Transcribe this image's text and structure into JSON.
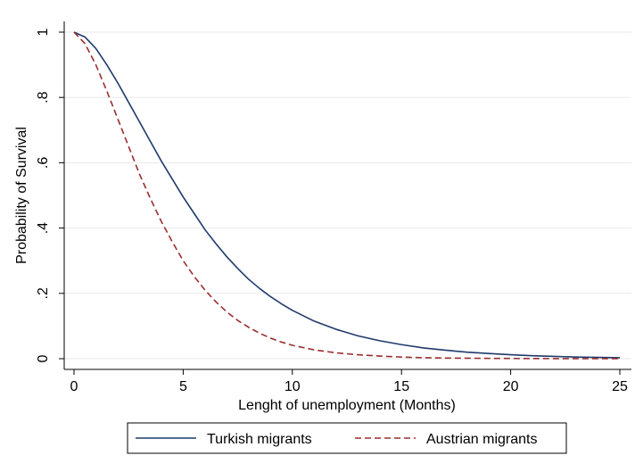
{
  "chart_data": {
    "type": "line",
    "xlabel": "Lenght of unemployment (Months)",
    "ylabel": "Probability of Survival",
    "xlim": [
      0,
      25
    ],
    "ylim": [
      0,
      1
    ],
    "x_ticks": [
      0,
      5,
      10,
      15,
      20,
      25
    ],
    "x_tick_labels": [
      "0",
      "5",
      "10",
      "15",
      "20",
      "25"
    ],
    "y_ticks": [
      0,
      0.2,
      0.4,
      0.6,
      0.8,
      1
    ],
    "y_tick_labels": [
      "0",
      ".2",
      ".4",
      ".6",
      ".8",
      "1"
    ],
    "grid": "horizontal",
    "legend_position": "bottom",
    "series": [
      {
        "name": "Turkish migrants",
        "color": "#1f3a6b",
        "style": "solid",
        "x": [
          0,
          0.5,
          1,
          1.5,
          2,
          2.5,
          3,
          3.5,
          4,
          4.5,
          5,
          5.5,
          6,
          6.5,
          7,
          7.5,
          8,
          8.5,
          9,
          9.5,
          10,
          11,
          12,
          13,
          14,
          15,
          16,
          17,
          18,
          19,
          20,
          21,
          22,
          23,
          24,
          25
        ],
        "values": [
          1.0,
          0.985,
          0.95,
          0.9,
          0.845,
          0.785,
          0.725,
          0.665,
          0.605,
          0.55,
          0.495,
          0.445,
          0.395,
          0.352,
          0.312,
          0.276,
          0.243,
          0.215,
          0.19,
          0.168,
          0.148,
          0.115,
          0.09,
          0.07,
          0.055,
          0.043,
          0.033,
          0.026,
          0.02,
          0.016,
          0.012,
          0.009,
          0.007,
          0.005,
          0.004,
          0.003
        ]
      },
      {
        "name": "Austrian migrants",
        "color": "#9b2d30",
        "style": "dashed",
        "x": [
          0,
          0.5,
          1,
          1.5,
          2,
          2.5,
          3,
          3.5,
          4,
          4.5,
          5,
          5.5,
          6,
          6.5,
          7,
          7.5,
          8,
          8.5,
          9,
          9.5,
          10,
          11,
          12,
          13,
          14,
          15,
          16,
          17,
          18,
          19,
          20,
          21,
          22,
          23,
          24,
          25
        ],
        "values": [
          1.0,
          0.965,
          0.9,
          0.82,
          0.735,
          0.65,
          0.565,
          0.49,
          0.42,
          0.358,
          0.3,
          0.252,
          0.21,
          0.174,
          0.143,
          0.117,
          0.096,
          0.078,
          0.063,
          0.051,
          0.041,
          0.027,
          0.018,
          0.012,
          0.008,
          0.005,
          0.003,
          0.002,
          0.0015,
          0.001,
          0.0007,
          0.0005,
          0.0003,
          0.0002,
          0.0001,
          0.0001
        ]
      }
    ]
  }
}
